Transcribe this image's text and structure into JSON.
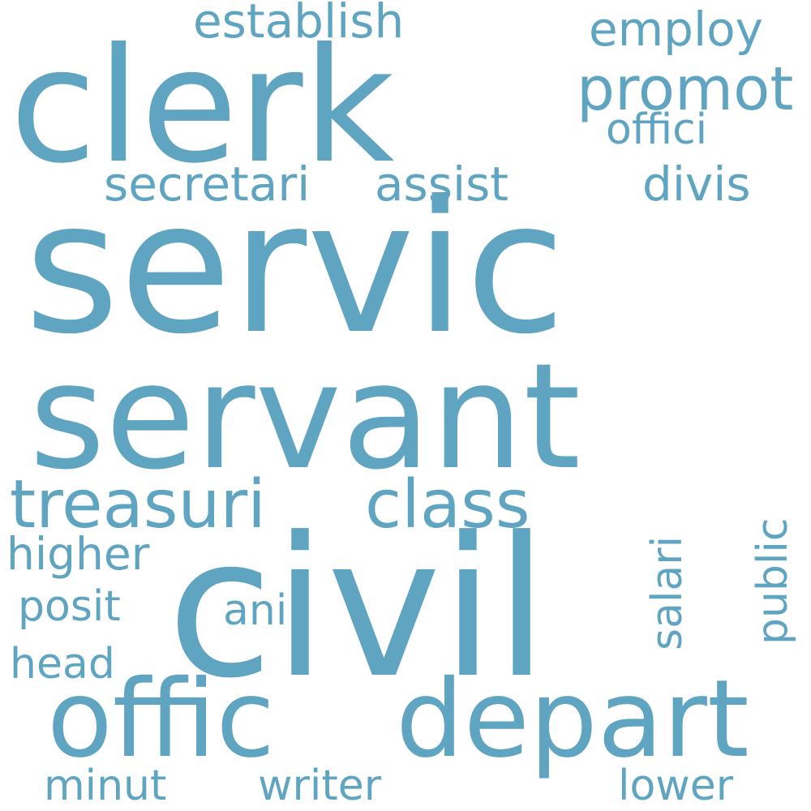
{
  "word_color": "#5fa4c0",
  "background_color": "#ffffff",
  "words": [
    "servic",
    "servant",
    "civil",
    "clerk",
    "depart",
    "offic",
    "treasuri",
    "class",
    "promot",
    "secretari",
    "assist",
    "establish",
    "employ",
    "offici",
    "divis",
    "higher",
    "posit",
    "ani",
    "salari",
    "public",
    "head",
    "minut",
    "writer",
    "lower"
  ]
}
